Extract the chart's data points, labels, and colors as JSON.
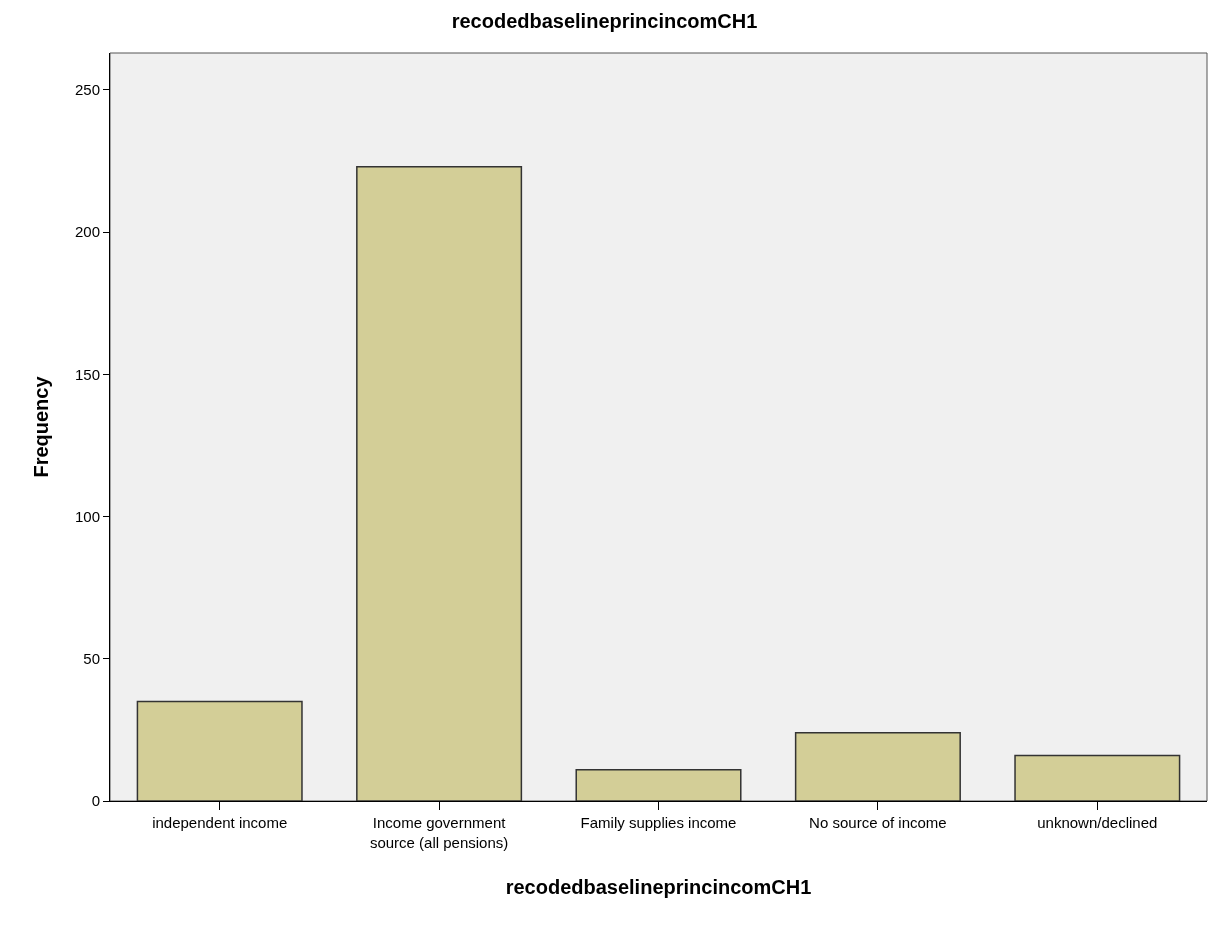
{
  "chart_data": {
    "type": "bar",
    "title": "recodedbaselineprincincomCH1",
    "xlabel": "recodedbaselineprincincomCH1",
    "ylabel": "Frequency",
    "categories": [
      "independent income",
      "Income government source (all pensions)",
      "Family supplies income",
      "No source of income",
      "unknown/declined"
    ],
    "values": [
      35,
      223,
      11,
      24,
      16
    ],
    "color": "#d3ce97",
    "ylim": [
      0,
      263
    ],
    "yticks": [
      0,
      50,
      100,
      150,
      200,
      250
    ],
    "grid": false,
    "legend": false
  }
}
